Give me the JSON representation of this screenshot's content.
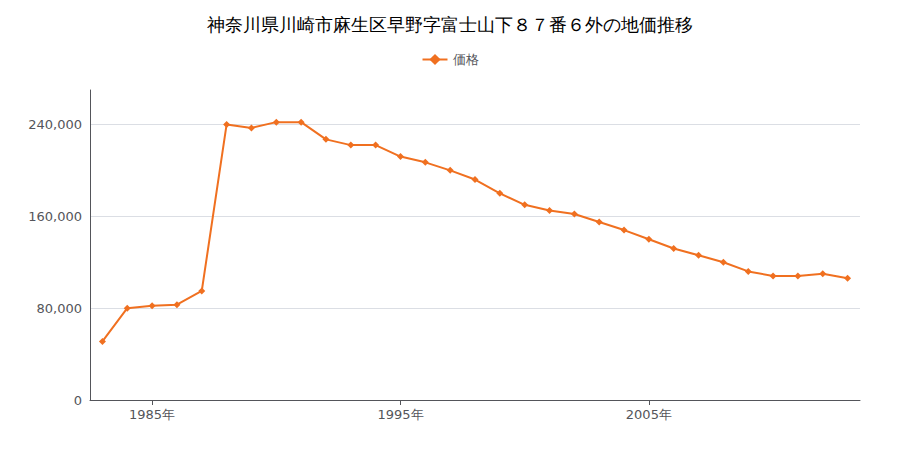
{
  "chart_data": {
    "type": "line",
    "title": "神奈川県川崎市麻生区早野字富士山下８７番６外の地価推移",
    "x": [
      1983,
      1984,
      1985,
      1986,
      1987,
      1988,
      1989,
      1990,
      1991,
      1992,
      1993,
      1994,
      1995,
      1996,
      1997,
      1998,
      1999,
      2000,
      2001,
      2002,
      2003,
      2004,
      2005,
      2006,
      2007,
      2008,
      2009,
      2010,
      2011,
      2012,
      2013
    ],
    "series": [
      {
        "name": "価格",
        "color": "#f07020",
        "marker": "diamond",
        "values": [
          51000,
          80000,
          82000,
          83000,
          95000,
          240000,
          237000,
          242000,
          242000,
          227000,
          222000,
          222000,
          212000,
          207000,
          200000,
          192000,
          180000,
          170000,
          165000,
          162000,
          155000,
          148000,
          140000,
          132000,
          126000,
          120000,
          112000,
          108000,
          108000,
          110000,
          106000
        ]
      }
    ],
    "xlim": [
      1982.5,
      2013.5
    ],
    "xticks": [
      {
        "value": 1985,
        "label": "1985年"
      },
      {
        "value": 1995,
        "label": "1995年"
      },
      {
        "value": 2005,
        "label": "2005年"
      }
    ],
    "ylim": [
      0,
      270000
    ],
    "yticks": [
      0,
      {
        "value": 80000,
        "label": "80,000"
      },
      {
        "value": 160000,
        "label": "160,000"
      },
      {
        "value": 240000,
        "label": "240,000"
      }
    ],
    "grid": true,
    "legend": "top"
  }
}
